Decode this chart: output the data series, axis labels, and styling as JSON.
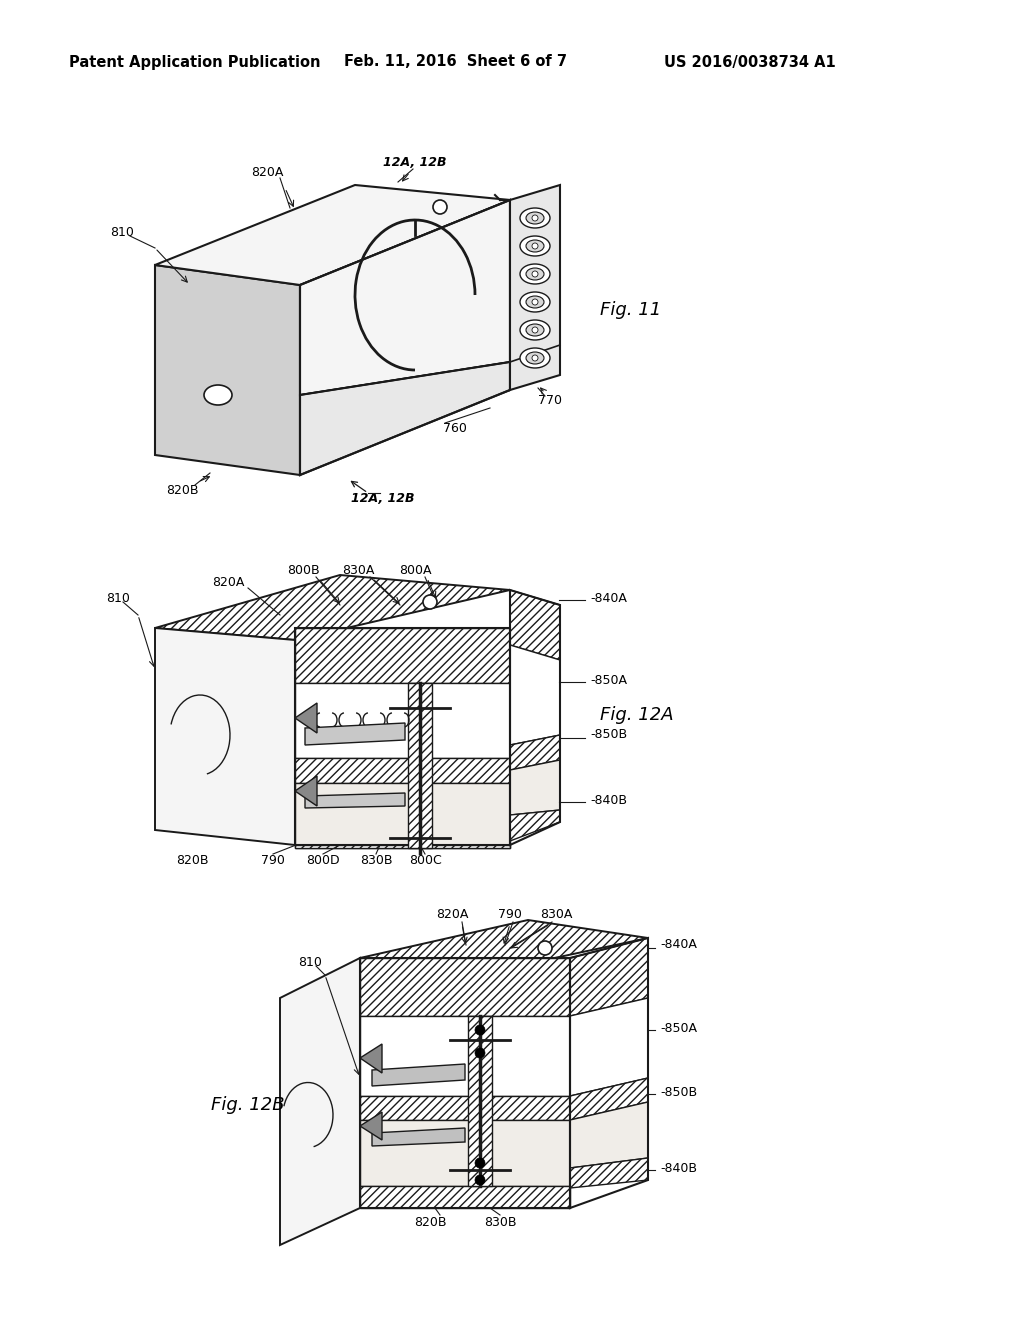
{
  "bg_color": "#ffffff",
  "header_left": "Patent Application Publication",
  "header_mid": "Feb. 11, 2016  Sheet 6 of 7",
  "header_right": "US 2016/0038734 A1",
  "fig11_label": "Fig. 11",
  "fig12a_label": "Fig. 12A",
  "fig12b_label": "Fig. 12B",
  "line_color": "#1a1a1a",
  "hatch_color": "#444444",
  "face_light": "#f5f5f5",
  "face_mid": "#e8e8e8",
  "face_dark": "#d0d0d0",
  "cavity_color": "#f0ede8",
  "hatch_density": "////"
}
